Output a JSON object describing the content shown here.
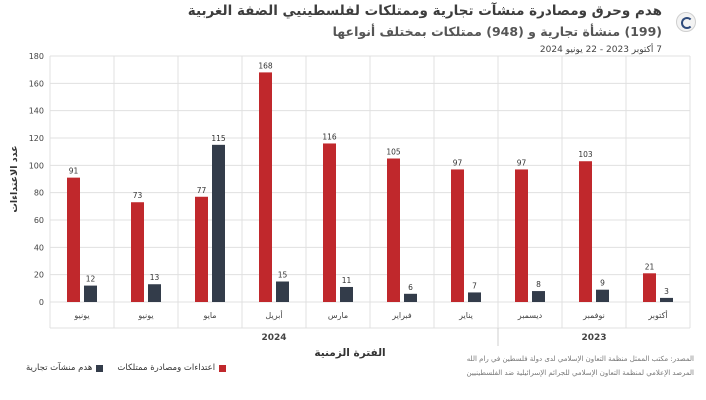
{
  "header": {
    "title": "هدم وحرق ومصادرة منشآت تجارية وممتلكات لفلسطينيي الضفة الغربية",
    "subtitle": "(199) منشأة تجارية و (948) ممتلكات بمختلف أنواعها",
    "date_range": "7 أكتوبر 2023 - 22 يونيو 2024"
  },
  "footer": {
    "source_line1": "المصدر: مكتب الممثل منظمة التعاون الإسلامي لدى دولة فلسطين في رام الله",
    "source_line2": "المرصد الإعلامي لمنظمة التعاون الإسلامي للجرائم الإسرائيلية ضد الفلسطينيين"
  },
  "colors": {
    "red": "#c0282c",
    "dark": "#333c4a",
    "grid": "#e0e0e0"
  },
  "chart_data": {
    "type": "bar",
    "categories": [
      "يونيو",
      "يونيو",
      "مايو",
      "أبريل",
      "مارس",
      "فبراير",
      "يناير",
      "ديسمبر",
      "نوفمبر",
      "أكتوبر"
    ],
    "years": [
      {
        "label": "2024",
        "from": 0,
        "to": 6
      },
      {
        "label": "2023",
        "from": 7,
        "to": 9
      }
    ],
    "series": [
      {
        "name": "اعتداءات ومصادرة ممتلكات",
        "color": "#c0282c",
        "values": [
          91,
          73,
          77,
          168,
          116,
          105,
          97,
          97,
          103,
          21
        ]
      },
      {
        "name": "هدم منشآت تجارية",
        "color": "#333c4a",
        "values": [
          12,
          13,
          115,
          15,
          11,
          6,
          7,
          8,
          9,
          3
        ]
      }
    ],
    "ylabel": "عدد الاعتداءات",
    "xlabel": "الفترة الزمنية",
    "ylim": [
      0,
      180
    ],
    "yticks": [
      0,
      20,
      40,
      60,
      80,
      100,
      120,
      140,
      160,
      180
    ],
    "grid": true,
    "legend_position": "bottom-left"
  }
}
